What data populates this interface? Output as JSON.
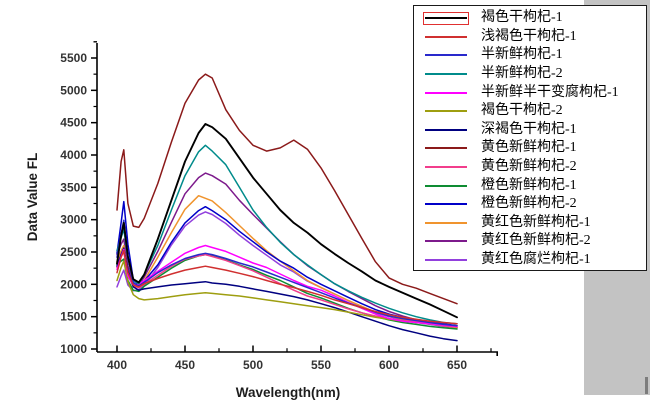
{
  "window": {
    "background": "#ffffff",
    "side_panel_color": "#c3c3c3"
  },
  "chart_data": {
    "type": "line",
    "title": "",
    "xlabel": "Wavelength(nm)",
    "ylabel": "Data Value FL",
    "x_ticks": [
      400,
      450,
      500,
      550,
      600,
      650
    ],
    "y_ticks": [
      1000,
      1500,
      2000,
      2500,
      3000,
      3500,
      4000,
      4500,
      5000,
      5500
    ],
    "xlim": [
      385,
      679
    ],
    "ylim": [
      955,
      5730
    ],
    "grid": false,
    "legend_position": "outside-top-right",
    "x": [
      400,
      403,
      405,
      408,
      412,
      416,
      420,
      430,
      440,
      450,
      460,
      465,
      470,
      480,
      490,
      500,
      510,
      520,
      530,
      540,
      550,
      560,
      570,
      580,
      590,
      600,
      610,
      620,
      630,
      640,
      650
    ],
    "series": [
      {
        "name": "褐色干枸杞-1",
        "color": "#000000",
        "values": [
          2320,
          2750,
          2950,
          2430,
          2080,
          2030,
          2150,
          2700,
          3300,
          3900,
          4340,
          4480,
          4430,
          4250,
          3950,
          3650,
          3400,
          3150,
          2950,
          2800,
          2620,
          2470,
          2330,
          2200,
          2060,
          1960,
          1870,
          1780,
          1690,
          1590,
          1490
        ]
      },
      {
        "name": "浅褐色干枸杞-1",
        "color": "#d03030",
        "values": [
          2180,
          2420,
          2520,
          2180,
          1990,
          1960,
          2010,
          2090,
          2160,
          2220,
          2260,
          2280,
          2260,
          2220,
          2170,
          2120,
          2060,
          2000,
          1950,
          1890,
          1830,
          1760,
          1700,
          1640,
          1580,
          1530,
          1490,
          1460,
          1430,
          1410,
          1390
        ]
      },
      {
        "name": "半新鲜枸杞-1",
        "color": "#2929cc",
        "values": [
          2420,
          2780,
          2990,
          2420,
          2030,
          1970,
          2030,
          2180,
          2300,
          2400,
          2460,
          2480,
          2460,
          2400,
          2330,
          2270,
          2190,
          2110,
          2030,
          1950,
          1870,
          1790,
          1710,
          1640,
          1570,
          1510,
          1470,
          1440,
          1410,
          1380,
          1360
        ]
      },
      {
        "name": "半新鲜枸杞-2",
        "color": "#008b8b",
        "values": [
          2520,
          2720,
          2850,
          2400,
          2060,
          2010,
          2150,
          2600,
          3150,
          3680,
          4050,
          4150,
          4060,
          3850,
          3500,
          3150,
          2880,
          2650,
          2460,
          2300,
          2150,
          2010,
          1900,
          1800,
          1710,
          1630,
          1560,
          1500,
          1450,
          1410,
          1390
        ]
      },
      {
        "name": "半新鲜半干变腐枸杞-1",
        "color": "#ff00ff",
        "values": [
          2230,
          2430,
          2540,
          2130,
          1990,
          2000,
          2060,
          2200,
          2340,
          2480,
          2570,
          2600,
          2570,
          2510,
          2420,
          2330,
          2260,
          2160,
          2060,
          1970,
          1910,
          1820,
          1720,
          1630,
          1540,
          1470,
          1430,
          1410,
          1390,
          1370,
          1350
        ]
      },
      {
        "name": "褐色干枸杞-2",
        "color": "#9e9e10",
        "values": [
          2060,
          2260,
          2360,
          2040,
          1840,
          1780,
          1760,
          1780,
          1810,
          1840,
          1860,
          1870,
          1860,
          1840,
          1820,
          1790,
          1760,
          1730,
          1700,
          1670,
          1640,
          1610,
          1570,
          1530,
          1490,
          1460,
          1430,
          1410,
          1390,
          1370,
          1360
        ]
      },
      {
        "name": "深褐色干枸杞-1",
        "color": "#000080",
        "values": [
          2280,
          2460,
          2560,
          2210,
          1960,
          1910,
          1930,
          1960,
          1990,
          2010,
          2030,
          2040,
          2020,
          2000,
          1970,
          1930,
          1890,
          1850,
          1810,
          1760,
          1700,
          1640,
          1570,
          1500,
          1430,
          1360,
          1300,
          1250,
          1200,
          1160,
          1130
        ]
      },
      {
        "name": "黄色新鲜枸杞-1",
        "color": "#8b1a1a",
        "values": [
          3150,
          3900,
          4080,
          3250,
          2900,
          2880,
          3020,
          3560,
          4200,
          4800,
          5160,
          5250,
          5190,
          4700,
          4380,
          4150,
          4060,
          4110,
          4230,
          4090,
          3800,
          3450,
          3080,
          2710,
          2350,
          2100,
          2000,
          1940,
          1860,
          1780,
          1700
        ]
      },
      {
        "name": "黄色新鲜枸杞-2",
        "color": "#f23d8c",
        "values": [
          2260,
          2430,
          2500,
          2130,
          1970,
          1950,
          2000,
          2140,
          2280,
          2390,
          2440,
          2460,
          2430,
          2370,
          2290,
          2210,
          2110,
          2010,
          1910,
          1820,
          1760,
          1690,
          1620,
          1560,
          1510,
          1470,
          1440,
          1420,
          1390,
          1360,
          1340
        ]
      },
      {
        "name": "橙色新鲜枸杞-1",
        "color": "#0e8c32",
        "values": [
          2300,
          2360,
          2390,
          2060,
          1910,
          1890,
          1970,
          2110,
          2250,
          2370,
          2440,
          2460,
          2440,
          2380,
          2300,
          2230,
          2140,
          2060,
          1960,
          1860,
          1790,
          1710,
          1630,
          1560,
          1500,
          1450,
          1410,
          1380,
          1350,
          1330,
          1310
        ]
      },
      {
        "name": "橙色新鲜枸杞-2",
        "color": "#0000c8",
        "values": [
          2480,
          2950,
          3280,
          2620,
          2070,
          1990,
          2050,
          2300,
          2650,
          2950,
          3140,
          3200,
          3140,
          3000,
          2820,
          2660,
          2500,
          2360,
          2250,
          2110,
          2000,
          1900,
          1800,
          1700,
          1610,
          1540,
          1490,
          1450,
          1420,
          1390,
          1360
        ]
      },
      {
        "name": "黄红色新鲜枸杞-1",
        "color": "#f0942e",
        "values": [
          2350,
          2520,
          2600,
          2180,
          1960,
          1980,
          2060,
          2420,
          2800,
          3160,
          3370,
          3330,
          3290,
          3110,
          2910,
          2710,
          2520,
          2360,
          2210,
          2060,
          1950,
          1850,
          1750,
          1660,
          1570,
          1510,
          1460,
          1420,
          1390,
          1360,
          1330
        ]
      },
      {
        "name": "黄红色新鲜枸杞-2",
        "color": "#7d1a8c",
        "values": [
          2460,
          2620,
          2700,
          2290,
          2010,
          1990,
          2110,
          2510,
          2960,
          3400,
          3650,
          3720,
          3680,
          3550,
          3300,
          3080,
          2870,
          2660,
          2460,
          2290,
          2150,
          2010,
          1890,
          1780,
          1670,
          1580,
          1510,
          1450,
          1400,
          1360,
          1330
        ]
      },
      {
        "name": "黄红色腐烂枸杞-1",
        "color": "#9240dd",
        "values": [
          1960,
          2130,
          2220,
          1990,
          1900,
          1920,
          1980,
          2260,
          2610,
          2900,
          3070,
          3120,
          3080,
          2940,
          2760,
          2600,
          2450,
          2300,
          2190,
          2050,
          1950,
          1850,
          1750,
          1650,
          1560,
          1500,
          1450,
          1410,
          1380,
          1350,
          1330
        ]
      }
    ]
  },
  "legend": {
    "selected_index": 0,
    "selection_color": "#e03030"
  }
}
